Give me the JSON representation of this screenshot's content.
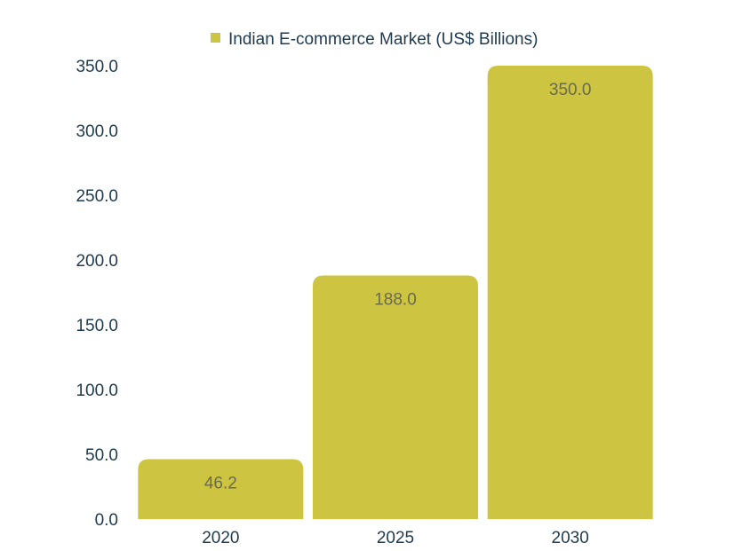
{
  "chart_data": {
    "type": "bar",
    "categories": [
      "2020",
      "2025",
      "2030"
    ],
    "series": [
      {
        "name": "Indian E-commerce Market (US$ Billions)",
        "values": [
          46.2,
          188.0,
          350.0
        ]
      }
    ],
    "data_labels": [
      "46.2",
      "188.0",
      "350.0"
    ],
    "y_ticks": [
      "0.0",
      "50.0",
      "100.0",
      "150.0",
      "200.0",
      "250.0",
      "300.0",
      "350.0"
    ],
    "ylim": [
      0,
      350
    ],
    "grid": false,
    "legend": "top-center",
    "colors": {
      "bar": "#cdc442",
      "text": "#1f3a4d",
      "label": "#6b6b4a"
    }
  }
}
